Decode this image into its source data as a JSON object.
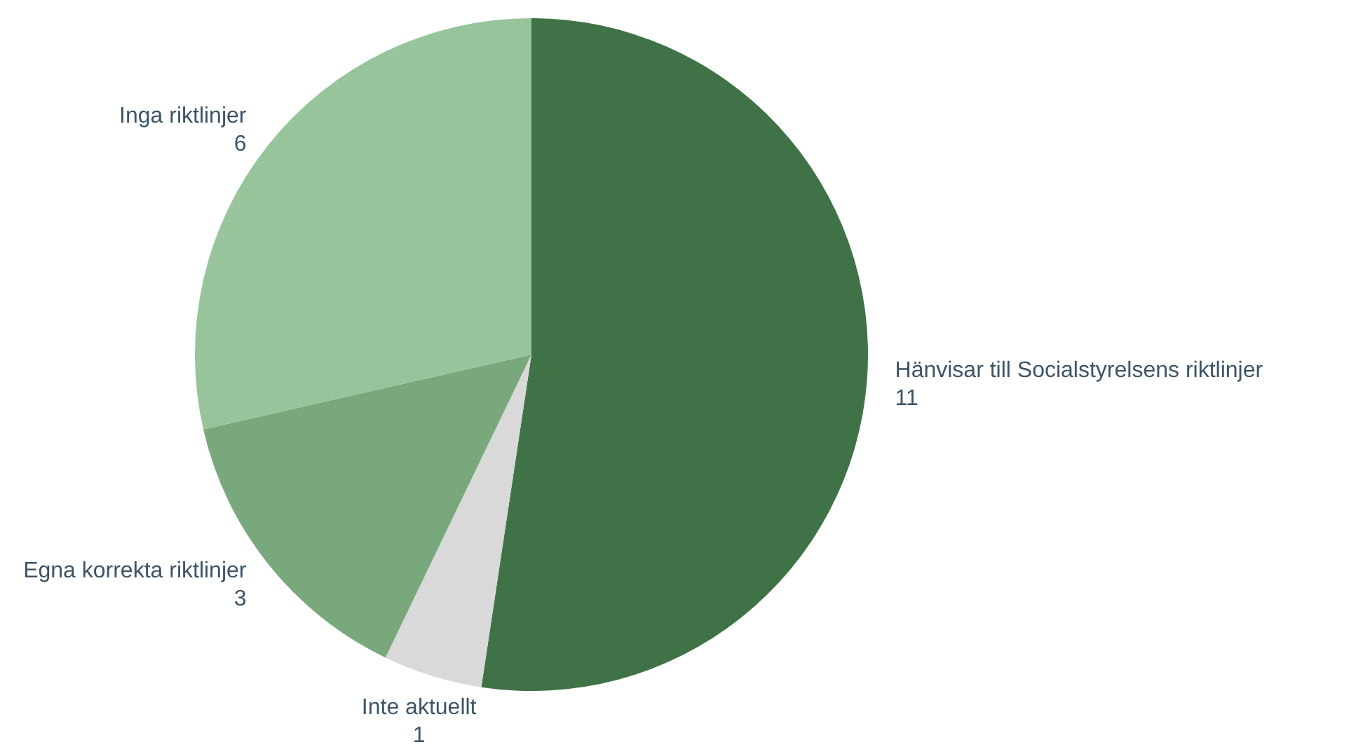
{
  "chart_data": {
    "type": "pie",
    "categories": [
      "Hänvisar till Socialstyrelsens riktlinjer",
      "Inte aktuellt",
      "Egna korrekta riktlinjer",
      "Inga riktlinjer"
    ],
    "values": [
      11,
      1,
      3,
      6
    ],
    "colors": [
      "#3f7347",
      "#d9d9d9",
      "#7aa87d",
      "#97c49a"
    ],
    "data_labels": true
  }
}
